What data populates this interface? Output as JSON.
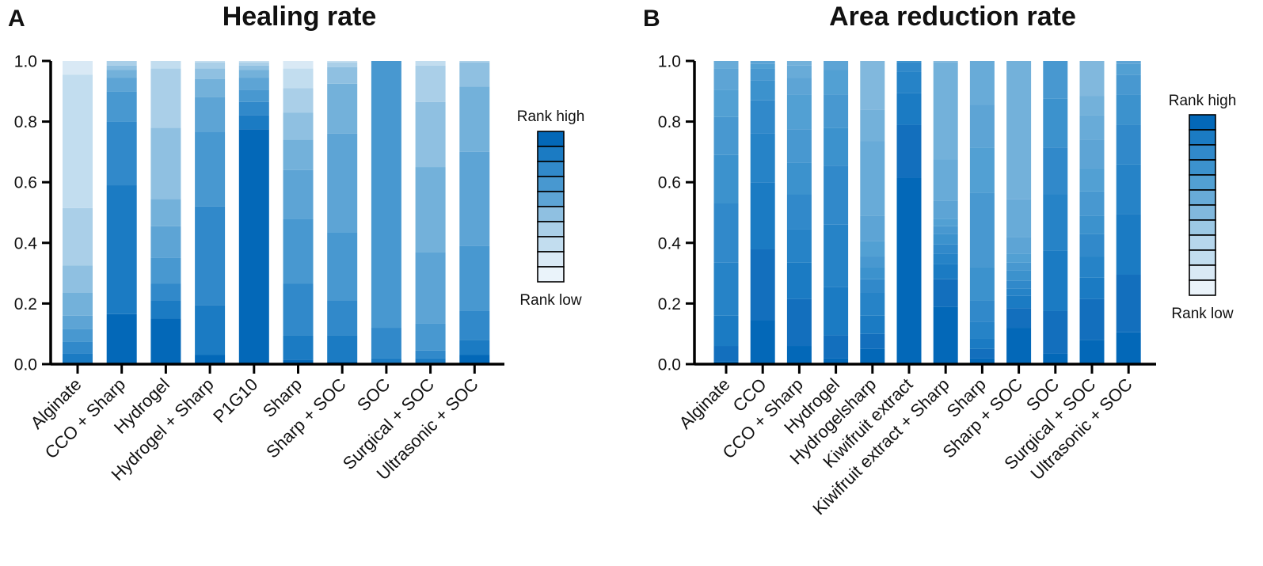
{
  "chart_data": [
    {
      "type": "bar",
      "stacked": true,
      "panel": "A",
      "title": "Healing rate",
      "xlabel": "",
      "ylabel": "",
      "ylim": [
        0,
        1
      ],
      "yticks": [
        "0.0",
        "0.2",
        "0.4",
        "0.6",
        "0.8",
        "1.0"
      ],
      "rank_palette": [
        "#0368b8",
        "#1b7bc3",
        "#3189ca",
        "#4898d0",
        "#5da4d5",
        "#73b1da",
        "#8fc0e1",
        "#aacfe8",
        "#c2ddef",
        "#d9e9f5",
        "#eaf3fa"
      ],
      "legend": {
        "high_label": "Rank high",
        "low_label": "Rank low",
        "levels": 10
      },
      "categories": [
        "Alginate",
        "CCO + Sharp",
        "Hydrogel",
        "Hydrogel + Sharp",
        "P1G10",
        "Sharp",
        "Sharp + SOC",
        "SOC",
        "Surgical + SOC",
        "Ultrasonic + SOC"
      ],
      "stacks": [
        [
          0.0,
          0.035,
          0.075,
          0.115,
          0.16,
          0.235,
          0.325,
          0.515,
          0.955,
          1.0
        ],
        [
          0.165,
          0.59,
          0.8,
          0.9,
          0.945,
          0.97,
          0.985,
          1.0
        ],
        [
          0.15,
          0.21,
          0.265,
          0.35,
          0.455,
          0.545,
          0.78,
          0.975,
          1.0
        ],
        [
          0.03,
          0.195,
          0.52,
          0.765,
          0.88,
          0.94,
          0.975,
          0.995,
          1.0
        ],
        [
          0.775,
          0.82,
          0.865,
          0.905,
          0.945,
          0.97,
          0.985,
          0.995,
          1.0
        ],
        [
          0.015,
          0.095,
          0.265,
          0.48,
          0.64,
          0.74,
          0.83,
          0.91,
          0.975,
          1.0
        ],
        [
          0.01,
          0.095,
          0.21,
          0.435,
          0.76,
          0.925,
          0.98,
          0.995,
          1.0
        ],
        [
          0.005,
          0.02,
          0.12,
          1.0
        ],
        [
          0.005,
          0.02,
          0.045,
          0.135,
          0.37,
          0.65,
          0.865,
          0.985,
          1.0
        ],
        [
          0.03,
          0.08,
          0.175,
          0.39,
          0.7,
          0.915,
          0.995,
          1.0
        ]
      ]
    },
    {
      "type": "bar",
      "stacked": true,
      "panel": "B",
      "title": "Area reduction rate",
      "xlabel": "",
      "ylabel": "",
      "ylim": [
        0,
        1
      ],
      "yticks": [
        "0.0",
        "0.2",
        "0.4",
        "0.6",
        "0.8",
        "1.0"
      ],
      "rank_palette": [
        "#0368b8",
        "#136fbd",
        "#1b7bc3",
        "#2683c7",
        "#3189ca",
        "#3c92cd",
        "#4898d0",
        "#52a0d3",
        "#5da4d5",
        "#68abd8",
        "#73b1da",
        "#81b8dd",
        "#8fc0e1",
        "#9cc8e4",
        "#aacfe8",
        "#b6d6ec",
        "#c2ddef",
        "#cde3f2",
        "#d9e9f5",
        "#e3eef7",
        "#eaf3fa"
      ],
      "legend": {
        "high_label": "Rank high",
        "low_label": "Rank low",
        "levels": 12
      },
      "categories": [
        "Alginate",
        "CCO",
        "CCO + Sharp",
        "Hydrogel",
        "Hydrogelsharp",
        "Kiwifruit extract",
        "Kiwifruit extract + Sharp",
        "Sharp",
        "Sharp + SOC",
        "SOC",
        "Surgical + SOC",
        "Ultrasonic + SOC"
      ],
      "stacks": [
        [
          0.01,
          0.06,
          0.16,
          0.335,
          0.53,
          0.69,
          0.815,
          0.905,
          0.975,
          1.0
        ],
        [
          0.145,
          0.38,
          0.6,
          0.76,
          0.87,
          0.935,
          0.975,
          0.99,
          1.0
        ],
        [
          0.06,
          0.215,
          0.335,
          0.445,
          0.56,
          0.665,
          0.775,
          0.89,
          0.945,
          0.985,
          1.0
        ],
        [
          0.02,
          0.095,
          0.255,
          0.46,
          0.655,
          0.78,
          0.89,
          0.97,
          1.0
        ],
        [
          0.05,
          0.1,
          0.16,
          0.235,
          0.28,
          0.32,
          0.355,
          0.405,
          0.49,
          0.735,
          0.84,
          1.0
        ],
        [
          0.615,
          0.79,
          0.895,
          0.965,
          0.995,
          1.0
        ],
        [
          0.19,
          0.28,
          0.33,
          0.365,
          0.395,
          0.43,
          0.455,
          0.48,
          0.54,
          0.675,
          0.995,
          1.0
        ],
        [
          0.02,
          0.05,
          0.085,
          0.14,
          0.21,
          0.32,
          0.565,
          0.715,
          0.855,
          1.0
        ],
        [
          0.12,
          0.185,
          0.225,
          0.25,
          0.275,
          0.31,
          0.335,
          0.365,
          0.42,
          0.545,
          1.0
        ],
        [
          0.035,
          0.175,
          0.375,
          0.56,
          0.715,
          0.875,
          1.0
        ],
        [
          0.08,
          0.215,
          0.285,
          0.355,
          0.43,
          0.49,
          0.57,
          0.645,
          0.74,
          0.82,
          0.885,
          1.0
        ],
        [
          0.105,
          0.295,
          0.495,
          0.66,
          0.79,
          0.89,
          0.955,
          0.99,
          1.0
        ]
      ]
    }
  ]
}
